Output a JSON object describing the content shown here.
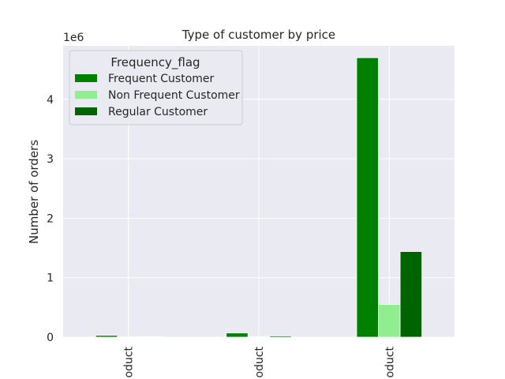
{
  "chart_data": {
    "type": "bar",
    "title": "Type of customer by price",
    "xlabel": "",
    "ylabel": "Number of orders",
    "y_offset_label": "1e6",
    "ylim": [
      0,
      4.9
    ],
    "y_ticks": [
      0,
      1,
      2,
      3,
      4
    ],
    "y_tick_labels": [
      "0",
      "1",
      "2",
      "3",
      "4"
    ],
    "categories": [
      "oduct",
      "oduct",
      "oduct"
    ],
    "series": [
      {
        "name": "Frequent Customer",
        "color": "#008000",
        "values": [
          0.03,
          0.07,
          4.7
        ]
      },
      {
        "name": "Non Frequent Customer",
        "color": "#90ee90",
        "values": [
          0.005,
          0.01,
          0.55
        ]
      },
      {
        "name": "Regular Customer",
        "color": "#006400",
        "values": [
          0.01,
          0.02,
          1.44
        ]
      }
    ],
    "legend": {
      "title": "Frequency_flag",
      "position": "top-left"
    },
    "grid": true,
    "background": "#eaeaf2"
  }
}
